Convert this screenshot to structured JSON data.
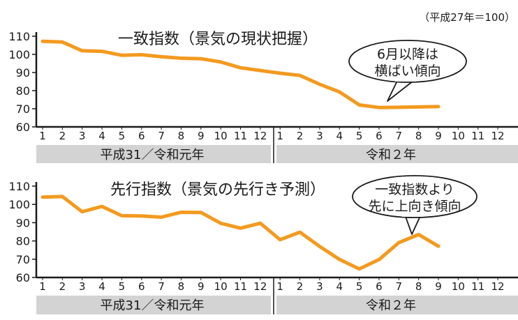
{
  "base_note": "（平成27年＝100）",
  "colors": {
    "line": "#f39a1f",
    "era_band": "#d3d3d3",
    "axis": "#1a1a1a"
  },
  "chart_data": [
    {
      "type": "line",
      "title": "一致指数（景気の現状把握）",
      "annotation": [
        "6月以降は",
        "横ばい傾向"
      ],
      "x_tick_labels": [
        "1",
        "2",
        "3",
        "4",
        "5",
        "6",
        "7",
        "8",
        "9",
        "10",
        "11",
        "12",
        "1",
        "2",
        "3",
        "4",
        "5",
        "6",
        "7",
        "8",
        "9",
        "10",
        "11",
        "12"
      ],
      "era_labels": [
        "平成31／令和元年",
        "令和２年"
      ],
      "ylim": [
        60,
        110
      ],
      "y_ticks": [
        60,
        70,
        80,
        90,
        100,
        110
      ],
      "series": [
        {
          "values": [
            107.2,
            106.8,
            102.0,
            101.7,
            99.5,
            99.8,
            98.7,
            97.9,
            97.6,
            95.8,
            92.6,
            91.1,
            89.6,
            88.4,
            83.5,
            79.3,
            72.1,
            70.7,
            70.8,
            71.0,
            71.2
          ]
        }
      ]
    },
    {
      "type": "line",
      "title": "先行指数（景気の先行き予測）",
      "annotation": [
        "一致指数より",
        "先に上向き傾向"
      ],
      "x_tick_labels": [
        "1",
        "2",
        "3",
        "4",
        "5",
        "6",
        "7",
        "8",
        "9",
        "10",
        "11",
        "12",
        "1",
        "2",
        "3",
        "4",
        "5",
        "6",
        "7",
        "8",
        "9",
        "10",
        "11",
        "12"
      ],
      "era_labels": [
        "平成31／令和元年",
        "令和２年"
      ],
      "ylim": [
        60,
        110
      ],
      "y_ticks": [
        60,
        70,
        80,
        90,
        100,
        110
      ],
      "series": [
        {
          "values": [
            104.0,
            104.3,
            96.0,
            98.9,
            93.8,
            93.7,
            93.0,
            95.7,
            95.6,
            89.7,
            87.0,
            89.7,
            80.7,
            84.8,
            77.0,
            69.9,
            64.7,
            69.8,
            79.1,
            83.5,
            77.1
          ]
        }
      ]
    }
  ]
}
